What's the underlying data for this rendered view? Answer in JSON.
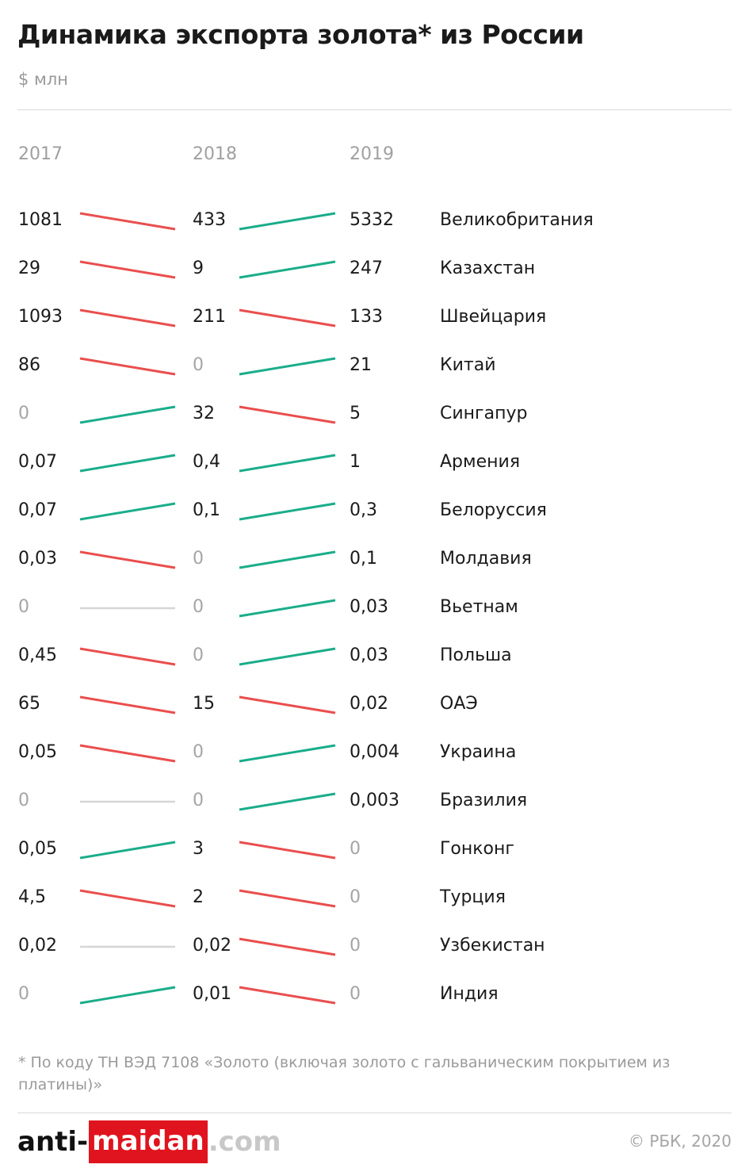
{
  "title": "Динамика экспорта золота* из России",
  "unit": "$ млн",
  "footnote": "* По коду ТН ВЭД 7108 «Золото (включая золото с гальваническим покрытием из платины)»",
  "copyright": "© РБК, 2020",
  "watermark": {
    "part1": "anti-",
    "part2": "maidan",
    "part3": ".com"
  },
  "colors": {
    "up": "#1aad8a",
    "down": "#ea4e4e",
    "flat": "#d6d6d6",
    "zero": "#a5a5a5"
  },
  "chart_data": {
    "type": "slope",
    "years": [
      "2017",
      "2018",
      "2019"
    ],
    "rows": [
      {
        "country": "Великобритания",
        "labels": [
          "1081",
          "433",
          "5332"
        ],
        "values": [
          1081,
          433,
          5332
        ]
      },
      {
        "country": "Казахстан",
        "labels": [
          "29",
          "9",
          "247"
        ],
        "values": [
          29,
          9,
          247
        ]
      },
      {
        "country": "Швейцария",
        "labels": [
          "1093",
          "211",
          "133"
        ],
        "values": [
          1093,
          211,
          133
        ]
      },
      {
        "country": "Китай",
        "labels": [
          "86",
          "0",
          "21"
        ],
        "values": [
          86,
          0,
          21
        ]
      },
      {
        "country": "Сингапур",
        "labels": [
          "0",
          "32",
          "5"
        ],
        "values": [
          0,
          32,
          5
        ]
      },
      {
        "country": "Армения",
        "labels": [
          "0,07",
          "0,4",
          "1"
        ],
        "values": [
          0.07,
          0.4,
          1
        ]
      },
      {
        "country": "Белоруссия",
        "labels": [
          "0,07",
          "0,1",
          "0,3"
        ],
        "values": [
          0.07,
          0.1,
          0.3
        ]
      },
      {
        "country": "Молдавия",
        "labels": [
          "0,03",
          "0",
          "0,1"
        ],
        "values": [
          0.03,
          0,
          0.1
        ]
      },
      {
        "country": "Вьетнам",
        "labels": [
          "0",
          "0",
          "0,03"
        ],
        "values": [
          0,
          0,
          0.03
        ]
      },
      {
        "country": "Польша",
        "labels": [
          "0,45",
          "0",
          "0,03"
        ],
        "values": [
          0.45,
          0,
          0.03
        ]
      },
      {
        "country": "ОАЭ",
        "labels": [
          "65",
          "15",
          "0,02"
        ],
        "values": [
          65,
          15,
          0.02
        ]
      },
      {
        "country": "Украина",
        "labels": [
          "0,05",
          "0",
          "0,004"
        ],
        "values": [
          0.05,
          0,
          0.004
        ]
      },
      {
        "country": "Бразилия",
        "labels": [
          "0",
          "0",
          "0,003"
        ],
        "values": [
          0,
          0,
          0.003
        ]
      },
      {
        "country": "Гонконг",
        "labels": [
          "0,05",
          "3",
          "0"
        ],
        "values": [
          0.05,
          3,
          0
        ]
      },
      {
        "country": "Турция",
        "labels": [
          "4,5",
          "2",
          "0"
        ],
        "values": [
          4.5,
          2,
          0
        ]
      },
      {
        "country": "Узбекистан",
        "labels": [
          "0,02",
          "0,02",
          "0"
        ],
        "values": [
          0.02,
          0.02,
          0
        ]
      },
      {
        "country": "Индия",
        "labels": [
          "0",
          "0,01",
          "0"
        ],
        "values": [
          0,
          0.01,
          0
        ]
      }
    ]
  }
}
